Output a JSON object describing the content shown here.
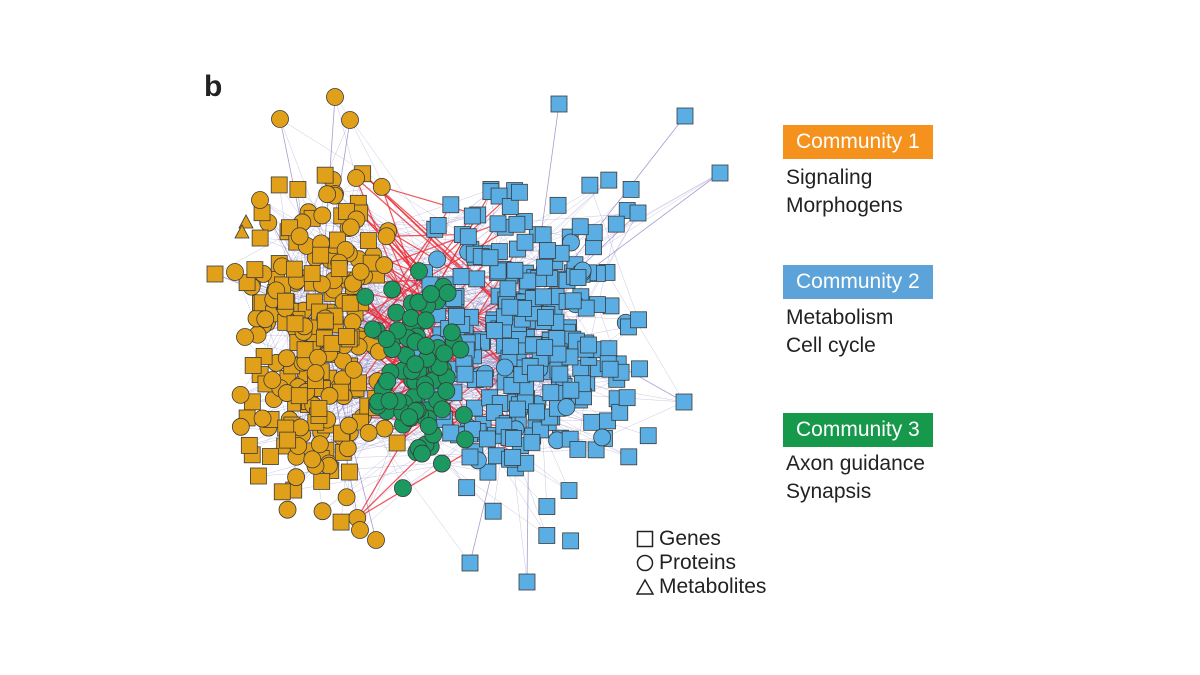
{
  "panel_label": "b",
  "communities": [
    {
      "label": "Community 1",
      "color": "#f5921e",
      "node_color": "#e1a019",
      "descriptions": [
        "Signaling",
        "Morphogens"
      ]
    },
    {
      "label": "Community 2",
      "color": "#5ba3d9",
      "node_color": "#5aaee3",
      "descriptions": [
        "Metabolism",
        "Cell cycle"
      ]
    },
    {
      "label": "Community 3",
      "color": "#16994a",
      "node_color": "#1b9960",
      "descriptions": [
        "Axon guidance",
        "Synapsis"
      ]
    }
  ],
  "node_types": [
    {
      "label": "Genes",
      "icon": "square-icon"
    },
    {
      "label": "Proteins",
      "icon": "circle-icon"
    },
    {
      "label": "Metabolites",
      "icon": "triangle-icon"
    }
  ],
  "colors": {
    "inter_edge": "#ee2b33",
    "edge": "#6a5fb0"
  }
}
